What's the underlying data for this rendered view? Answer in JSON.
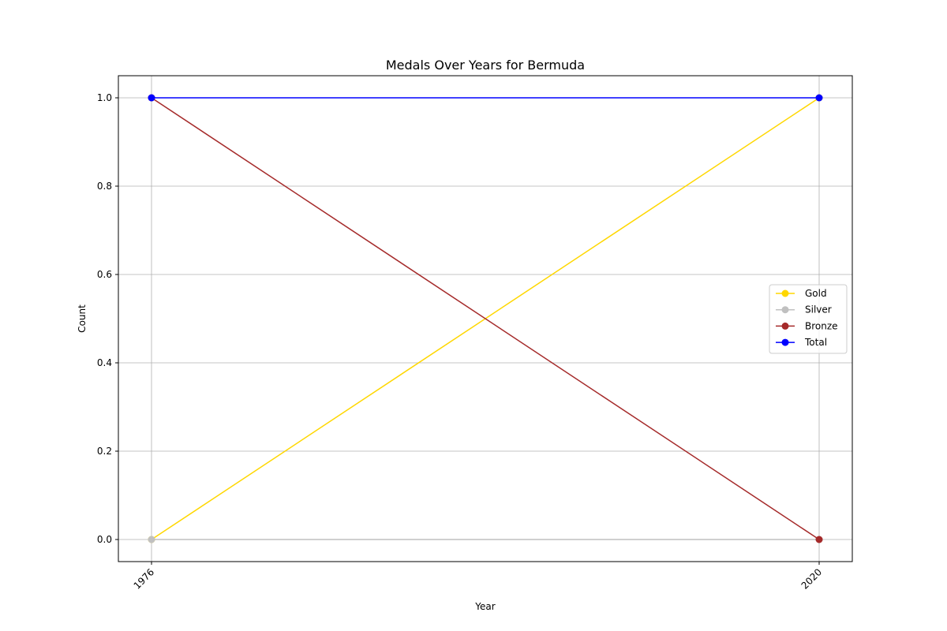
{
  "chart_data": {
    "type": "line",
    "title": "Medals Over Years for Bermuda",
    "xlabel": "Year",
    "ylabel": "Count",
    "x": [
      "1976",
      "2020"
    ],
    "yticks": [
      "0.0",
      "0.2",
      "0.4",
      "0.6",
      "0.8",
      "1.0"
    ],
    "ylim": [
      -0.05,
      1.05
    ],
    "grid": true,
    "legend_position": "right",
    "series": [
      {
        "name": "Gold",
        "values": [
          0,
          1
        ],
        "color": "#ffd700"
      },
      {
        "name": "Silver",
        "values": [
          0,
          0
        ],
        "color": "#c0c0c0"
      },
      {
        "name": "Bronze",
        "values": [
          1,
          0
        ],
        "color": "#a52a2a"
      },
      {
        "name": "Total",
        "values": [
          1,
          1
        ],
        "color": "#0000ff"
      }
    ]
  }
}
